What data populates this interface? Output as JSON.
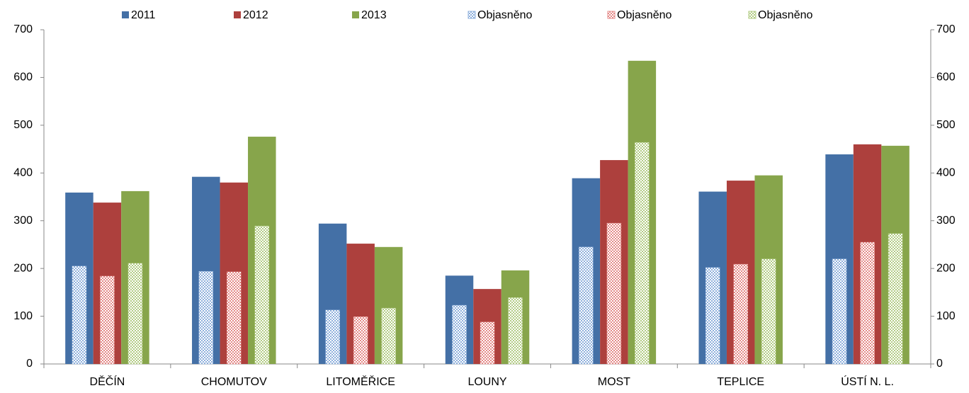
{
  "chart_data": {
    "type": "bar",
    "categories": [
      "DĚČÍN",
      "CHOMUTOV",
      "LITOMĚŘICE",
      "LOUNY",
      "MOST",
      "TEPLICE",
      "ÚSTÍ N. L."
    ],
    "series": [
      {
        "name": "2011",
        "color": "#4470a6",
        "values": [
          359,
          392,
          294,
          185,
          389,
          361,
          439
        ]
      },
      {
        "name": "2012",
        "color": "#ad403d",
        "values": [
          338,
          380,
          252,
          157,
          427,
          384,
          460
        ]
      },
      {
        "name": "2013",
        "color": "#87a54b",
        "values": [
          362,
          476,
          245,
          196,
          635,
          395,
          457
        ]
      },
      {
        "name": "Objasněno",
        "color": "#8fb0dc",
        "axis": "y2",
        "values": [
          205,
          194,
          113,
          123,
          245,
          202,
          220
        ]
      },
      {
        "name": "Objasněno",
        "color": "#e48a88",
        "axis": "y2",
        "values": [
          184,
          193,
          99,
          88,
          295,
          209,
          255
        ]
      },
      {
        "name": "Objasněno",
        "color": "#b3cc85",
        "axis": "y2",
        "values": [
          211,
          289,
          117,
          139,
          464,
          220,
          273
        ]
      }
    ],
    "ylim": [
      0,
      700
    ],
    "yticks": [
      0,
      100,
      200,
      300,
      400,
      500,
      600,
      700
    ],
    "y2lim": [
      0,
      700
    ],
    "y2ticks": [
      0,
      100,
      200,
      300,
      400,
      500,
      600,
      700
    ],
    "legend": "top"
  }
}
